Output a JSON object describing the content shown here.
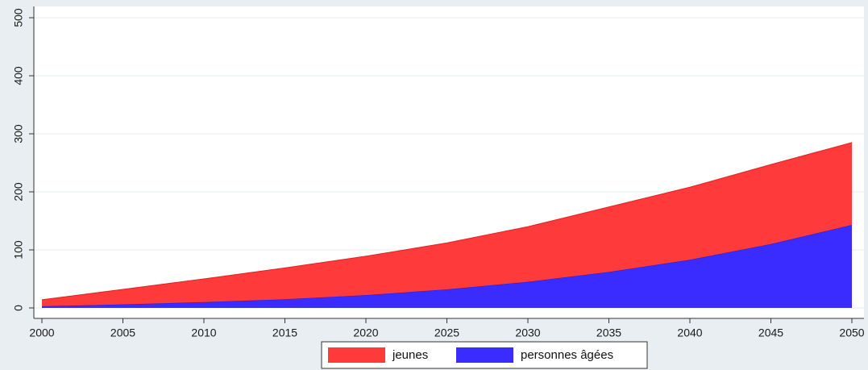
{
  "chart_data": {
    "type": "area",
    "stacked": true,
    "x": [
      2000,
      2005,
      2010,
      2015,
      2020,
      2025,
      2030,
      2035,
      2040,
      2045,
      2050
    ],
    "series": [
      {
        "name": "personnes âgées",
        "color": "#3a2bff",
        "values": [
          3,
          6,
          10,
          15,
          22,
          32,
          45,
          62,
          83,
          110,
          143
        ]
      },
      {
        "name": "jeunes",
        "color": "#ff3a3a",
        "values": [
          11,
          26,
          40,
          54,
          67,
          80,
          95,
          112,
          125,
          137,
          142
        ]
      }
    ],
    "xlim": [
      2000,
      2050
    ],
    "ylim": [
      0,
      500
    ],
    "xticks": [
      "2000",
      "2005",
      "2010",
      "2015",
      "2020",
      "2025",
      "2030",
      "2035",
      "2040",
      "2045",
      "2050"
    ],
    "yticks": [
      "0",
      "100",
      "200",
      "300",
      "400",
      "500"
    ],
    "grid": "horizontal",
    "legend_position": "bottom-center"
  }
}
